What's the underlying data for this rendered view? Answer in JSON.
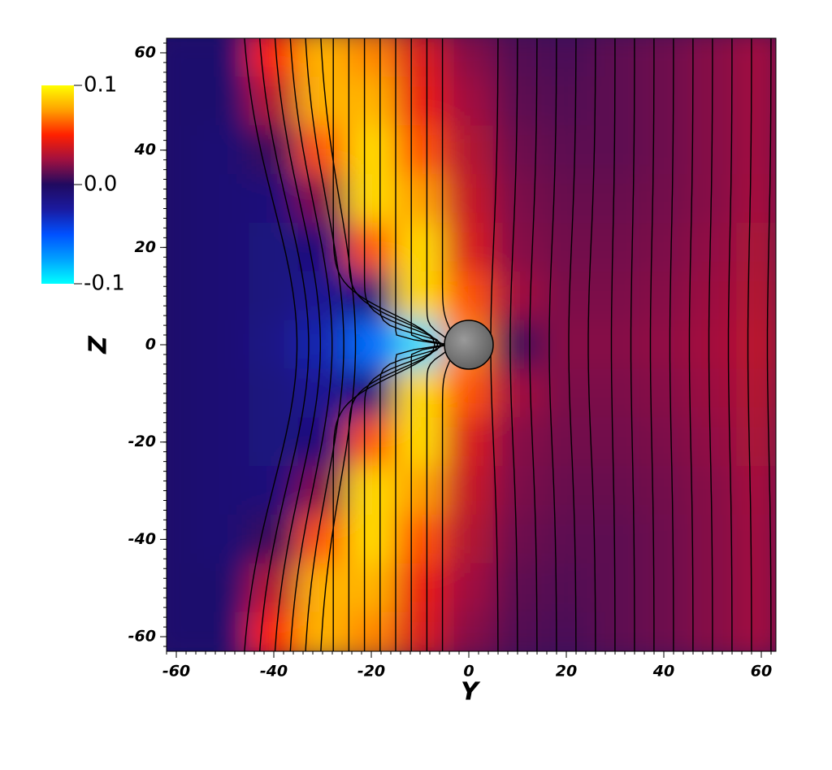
{
  "chart_data": {
    "type": "heatmap",
    "xlabel": "Y",
    "ylabel": "Z",
    "xlim": [
      -62,
      63
    ],
    "ylim": [
      -63,
      63
    ],
    "xticks": [
      -60,
      -40,
      -20,
      0,
      20,
      40,
      60
    ],
    "yticks": [
      -60,
      -40,
      -20,
      0,
      20,
      40,
      60
    ],
    "x": [
      -60,
      -50,
      -40,
      -30,
      -20,
      -10,
      0,
      10,
      20,
      30,
      40,
      50,
      60
    ],
    "y": [
      60,
      50,
      40,
      30,
      20,
      10,
      0,
      -10,
      -20,
      -30,
      -40,
      -50,
      -60
    ],
    "z": [
      [
        -0.005,
        -0.005,
        0.05,
        0.08,
        0.07,
        0.04,
        0.02,
        0.01,
        0.008,
        0.012,
        0.015,
        0.02,
        0.025
      ],
      [
        -0.005,
        -0.005,
        0.03,
        0.08,
        0.08,
        0.045,
        0.025,
        0.012,
        0.01,
        0.012,
        0.015,
        0.02,
        0.025
      ],
      [
        -0.005,
        -0.008,
        0.005,
        0.06,
        0.09,
        0.06,
        0.03,
        0.015,
        0.012,
        0.012,
        0.015,
        0.02,
        0.025
      ],
      [
        -0.005,
        -0.008,
        -0.01,
        0.02,
        0.09,
        0.075,
        0.035,
        0.018,
        0.014,
        0.014,
        0.016,
        0.02,
        0.026
      ],
      [
        -0.005,
        -0.008,
        -0.012,
        -0.01,
        0.06,
        0.09,
        0.04,
        0.02,
        0.016,
        0.016,
        0.018,
        0.022,
        0.028
      ],
      [
        -0.005,
        -0.008,
        -0.012,
        -0.02,
        -0.01,
        0.09,
        0.06,
        0.025,
        0.018,
        0.018,
        0.02,
        0.024,
        0.03
      ],
      [
        -0.005,
        -0.008,
        -0.015,
        -0.03,
        -0.06,
        -0.09,
        0.07,
        0.005,
        0.02,
        0.02,
        0.022,
        0.026,
        0.032
      ],
      [
        -0.005,
        -0.008,
        -0.012,
        -0.02,
        -0.01,
        0.09,
        0.06,
        0.025,
        0.018,
        0.018,
        0.02,
        0.024,
        0.03
      ],
      [
        -0.005,
        -0.008,
        -0.012,
        -0.01,
        0.06,
        0.09,
        0.04,
        0.02,
        0.016,
        0.016,
        0.018,
        0.022,
        0.028
      ],
      [
        -0.005,
        -0.008,
        -0.01,
        0.02,
        0.09,
        0.075,
        0.035,
        0.018,
        0.014,
        0.014,
        0.016,
        0.02,
        0.026
      ],
      [
        -0.005,
        -0.008,
        0.005,
        0.06,
        0.09,
        0.06,
        0.03,
        0.015,
        0.012,
        0.012,
        0.015,
        0.02,
        0.025
      ],
      [
        -0.005,
        -0.005,
        0.03,
        0.08,
        0.08,
        0.045,
        0.025,
        0.012,
        0.01,
        0.012,
        0.015,
        0.02,
        0.025
      ],
      [
        -0.005,
        -0.005,
        0.05,
        0.08,
        0.07,
        0.04,
        0.02,
        0.01,
        0.008,
        0.012,
        0.015,
        0.02,
        0.025
      ]
    ],
    "colorbar_lim": [
      -0.1,
      0.1
    ],
    "colorbar_ticks": [
      0.1,
      {
        "value": 0,
        "label": "0.0"
      },
      -0.1
    ],
    "colormap": [
      "#00ffff",
      "#00a0ff",
      "#0050ff",
      "#1a1aa0",
      "#200a60",
      "#a01040",
      "#ff2000",
      "#ffa000",
      "#ffff00"
    ]
  }
}
